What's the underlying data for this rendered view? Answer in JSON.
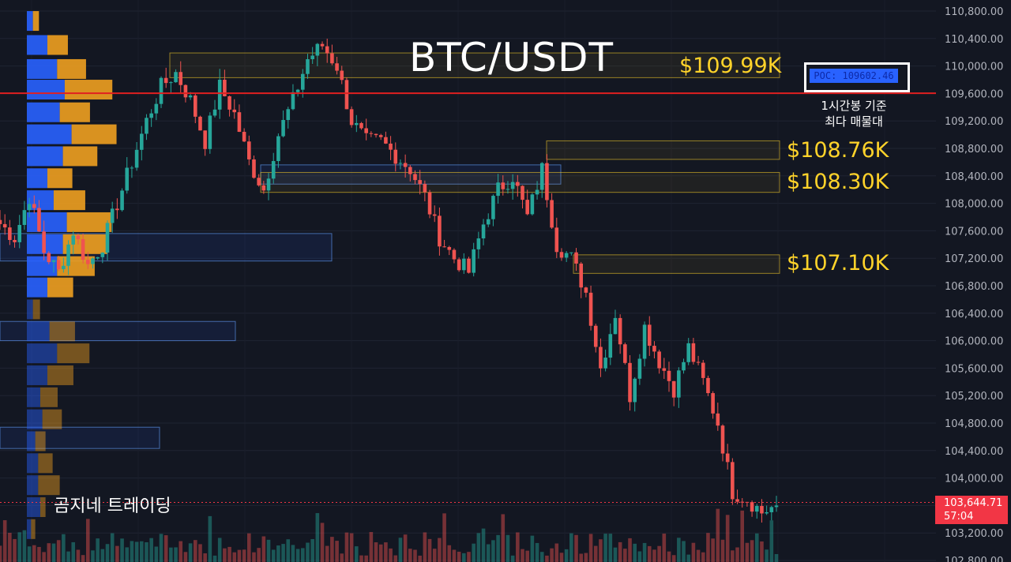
{
  "title": "BTC/USDT",
  "watermark": "곰지네 트레이딩",
  "levels": [
    {
      "label": "$109.99K",
      "value": 109990,
      "range": [
        109830,
        110190
      ]
    },
    {
      "label": "$108.76K",
      "value": 108760,
      "range": [
        108640,
        108910
      ]
    },
    {
      "label": "$108.30K",
      "value": 108300,
      "range": [
        108160,
        108450
      ]
    },
    {
      "label": "$107.10K",
      "value": 107100,
      "range": [
        106980,
        107250
      ]
    }
  ],
  "poc": {
    "label": "POC: 109602.46",
    "value": 109602.46,
    "note_line1": "1시간봉 기준",
    "note_line2": "최다 매물대"
  },
  "current_price": {
    "price": "103,644.71",
    "countdown": "57:04",
    "value": 103644.71
  },
  "colors": {
    "background": "#131722",
    "up": "#26a69a",
    "down": "#ef5350",
    "vp_up": "#2962ff",
    "vp_down": "#f0a020",
    "level": "#ffd32a",
    "poc_line": "#e02020"
  },
  "chart_data": {
    "type": "candlestick",
    "ylim": [
      102800,
      110800
    ],
    "y_ticks": [
      "110,800.00",
      "110,400.00",
      "110,000.00",
      "109,600.00",
      "109,200.00",
      "108,800.00",
      "108,400.00",
      "108,000.00",
      "107,600.00",
      "107,200.00",
      "106,800.00",
      "106,400.00",
      "106,000.00",
      "105,600.00",
      "105,200.00",
      "104,800.00",
      "104,400.00",
      "104,000.00",
      "103,600.00",
      "103,200.00",
      "102,800.00"
    ],
    "close_path": [
      107700,
      107500,
      108100,
      107300,
      107000,
      107600,
      107100,
      107400,
      108000,
      108600,
      109200,
      109700,
      109900,
      109500,
      108900,
      109700,
      109300,
      108600,
      108200,
      109000,
      109500,
      110100,
      110300,
      110000,
      109200,
      108900,
      108900,
      108700,
      108500,
      108100,
      107500,
      107200,
      107000,
      107700,
      108200,
      108400,
      107800,
      108500,
      107400,
      107200,
      106700,
      105600,
      106400,
      105200,
      106200,
      105700,
      105300,
      105900,
      105400,
      104800,
      103800,
      103700,
      103500,
      103600
    ],
    "candles_per_segment": 3,
    "volume_profile": [
      {
        "price": 110650,
        "buy": 0.023,
        "sell": 0.023
      },
      {
        "price": 110300,
        "buy": 0.078,
        "sell": 0.078
      },
      {
        "price": 109950,
        "buy": 0.115,
        "sell": 0.11
      },
      {
        "price": 109650,
        "buy": 0.144,
        "sell": 0.181
      },
      {
        "price": 109320,
        "buy": 0.125,
        "sell": 0.115
      },
      {
        "price": 109000,
        "buy": 0.17,
        "sell": 0.171
      },
      {
        "price": 108680,
        "buy": 0.137,
        "sell": 0.131
      },
      {
        "price": 108360,
        "buy": 0.078,
        "sell": 0.095
      },
      {
        "price": 108040,
        "buy": 0.102,
        "sell": 0.12
      },
      {
        "price": 107720,
        "buy": 0.152,
        "sell": 0.17
      },
      {
        "price": 107400,
        "buy": 0.137,
        "sell": 0.17
      },
      {
        "price": 107080,
        "buy": 0.115,
        "sell": 0.143
      },
      {
        "price": 106770,
        "buy": 0.078,
        "sell": 0.098
      },
      {
        "price": 106450,
        "buy": 0.023,
        "sell": 0.027
      },
      {
        "price": 106130,
        "buy": 0.086,
        "sell": 0.097
      },
      {
        "price": 105810,
        "buy": 0.115,
        "sell": 0.123
      },
      {
        "price": 105490,
        "buy": 0.078,
        "sell": 0.099
      },
      {
        "price": 105170,
        "buy": 0.051,
        "sell": 0.066
      },
      {
        "price": 104850,
        "buy": 0.059,
        "sell": 0.074
      },
      {
        "price": 104530,
        "buy": 0.032,
        "sell": 0.039
      },
      {
        "price": 104210,
        "buy": 0.043,
        "sell": 0.055
      },
      {
        "price": 103890,
        "buy": 0.043,
        "sell": 0.082
      },
      {
        "price": 103570,
        "buy": 0.051,
        "sell": 0.02
      },
      {
        "price": 103250,
        "buy": 0.016,
        "sell": 0.016
      }
    ],
    "highlight_boxes": [
      {
        "range": [
          108280,
          108560
        ]
      },
      {
        "range": [
          107160,
          107560
        ]
      },
      {
        "range": [
          106000,
          106280
        ]
      },
      {
        "range": [
          104430,
          104740
        ]
      }
    ]
  }
}
